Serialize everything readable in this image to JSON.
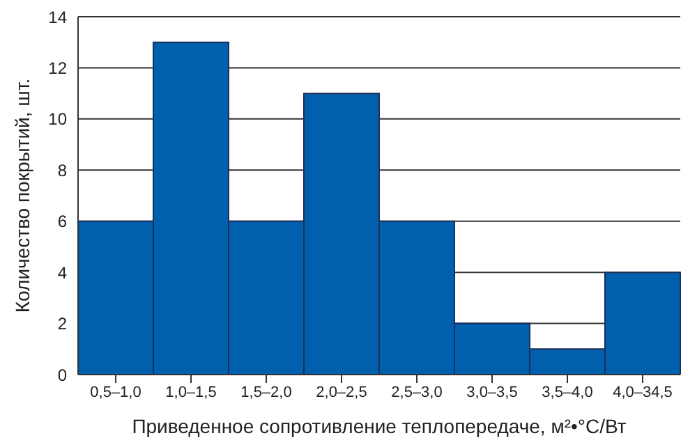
{
  "chart_data": {
    "type": "bar",
    "xlabel": "Приведенное сопротивление теплопередаче, м²•°С/Вт",
    "ylabel": "Количество покрытий, шт.",
    "categories": [
      "0,5–1,0",
      "1,0–1,5",
      "1,5–2,0",
      "2,0–2,5",
      "2,5–3,0",
      "3,0–3,5",
      "3,5–4,0",
      "4,0–34,5"
    ],
    "values": [
      6,
      13,
      6,
      11,
      6,
      2,
      1,
      4
    ],
    "color": "#0060ae",
    "ylim": [
      0,
      14
    ],
    "yticks": [
      0,
      2,
      4,
      6,
      8,
      10,
      12,
      14
    ],
    "grid": "y"
  }
}
